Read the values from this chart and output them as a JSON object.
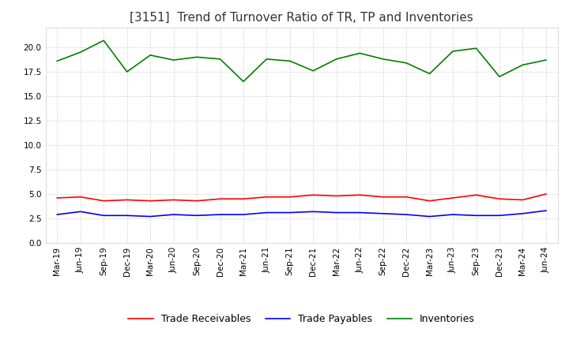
{
  "title": "[3151]  Trend of Turnover Ratio of TR, TP and Inventories",
  "x_labels": [
    "Mar-19",
    "Jun-19",
    "Sep-19",
    "Dec-19",
    "Mar-20",
    "Jun-20",
    "Sep-20",
    "Dec-20",
    "Mar-21",
    "Jun-21",
    "Sep-21",
    "Dec-21",
    "Mar-22",
    "Jun-22",
    "Sep-22",
    "Dec-22",
    "Mar-23",
    "Jun-23",
    "Sep-23",
    "Dec-23",
    "Mar-24",
    "Jun-24"
  ],
  "trade_receivables": [
    4.6,
    4.7,
    4.3,
    4.4,
    4.3,
    4.4,
    4.3,
    4.5,
    4.5,
    4.7,
    4.7,
    4.9,
    4.8,
    4.9,
    4.7,
    4.7,
    4.3,
    4.6,
    4.9,
    4.5,
    4.4,
    5.0
  ],
  "trade_payables": [
    2.9,
    3.2,
    2.8,
    2.8,
    2.7,
    2.9,
    2.8,
    2.9,
    2.9,
    3.1,
    3.1,
    3.2,
    3.1,
    3.1,
    3.0,
    2.9,
    2.7,
    2.9,
    2.8,
    2.8,
    3.0,
    3.3
  ],
  "inventories": [
    18.6,
    19.5,
    20.7,
    17.5,
    19.2,
    18.7,
    19.0,
    18.8,
    16.5,
    18.8,
    18.6,
    17.6,
    18.8,
    19.4,
    18.8,
    18.4,
    17.3,
    19.6,
    19.9,
    17.0,
    18.2,
    18.7
  ],
  "color_tr": "#ff0000",
  "color_tp": "#0000ff",
  "color_inv": "#008000",
  "ylim": [
    0.0,
    22.0
  ],
  "yticks": [
    0.0,
    2.5,
    5.0,
    7.5,
    10.0,
    12.5,
    15.0,
    17.5,
    20.0
  ],
  "legend_labels": [
    "Trade Receivables",
    "Trade Payables",
    "Inventories"
  ],
  "background_color": "#ffffff",
  "grid_color": "#bbbbbb",
  "title_fontsize": 11,
  "title_color": "#333333",
  "legend_fontsize": 9,
  "tick_labelsize": 7.5
}
